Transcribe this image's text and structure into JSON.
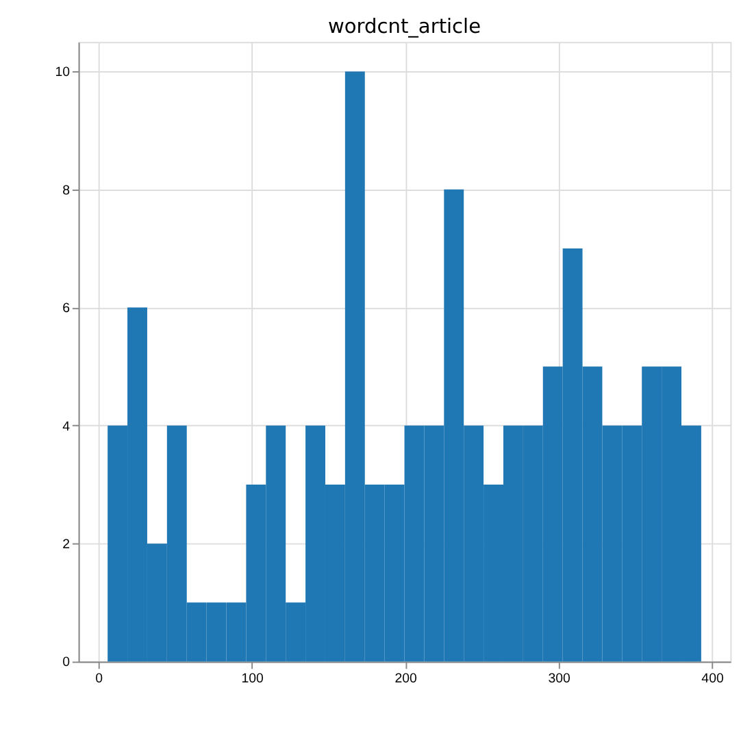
{
  "chart_data": {
    "type": "histogram",
    "title": "wordcnt_article",
    "bins": [
      6,
      18.9,
      31.8,
      44.7,
      57.6,
      70.5,
      83.4,
      96.3,
      109.2,
      122.1,
      135,
      147.9,
      160.8,
      173.7,
      186.6,
      199.5,
      212.4,
      225.3,
      238.2,
      251.1,
      264,
      276.9,
      289.8,
      302.7,
      315.6,
      328.5,
      341.4,
      354.3,
      367.2,
      380.1,
      393
    ],
    "values": [
      4,
      6,
      2,
      4,
      1,
      1,
      1,
      3,
      4,
      1,
      4,
      3,
      10,
      3,
      3,
      4,
      4,
      8,
      4,
      3,
      4,
      4,
      5,
      7,
      5,
      4,
      4,
      5,
      5,
      4
    ],
    "color": "#1f77b4",
    "xlim": [
      -13,
      412
    ],
    "xticks": [
      0,
      100,
      200,
      300,
      400
    ],
    "ylim": [
      0,
      10.5
    ],
    "yticks": [
      0,
      2,
      4,
      6,
      8,
      10
    ],
    "grid": true
  }
}
